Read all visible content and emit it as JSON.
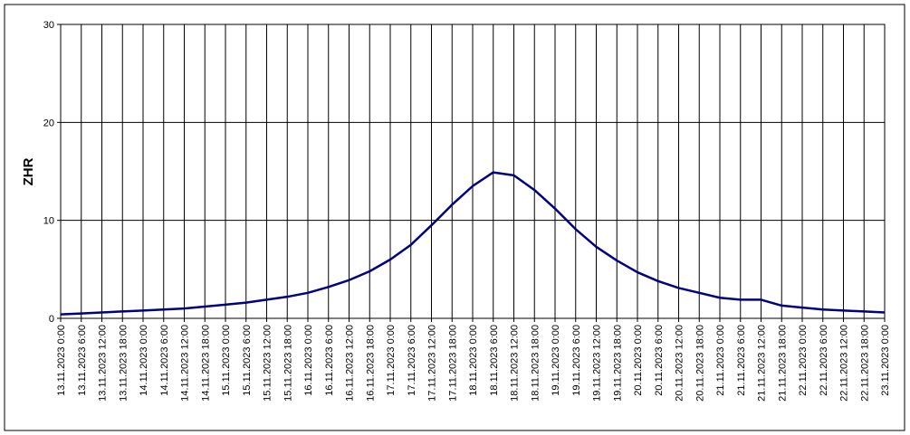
{
  "chart_data": {
    "type": "line",
    "y_label": "ZHR",
    "categories": [
      "13.11.2023 0:00",
      "13.11.2023 6:00",
      "13.11.2023 12:00",
      "13.11.2023 18:00",
      "14.11.2023 0:00",
      "14.11.2023 6:00",
      "14.11.2023 12:00",
      "14.11.2023 18:00",
      "15.11.2023 0:00",
      "15.11.2023 6:00",
      "15.11.2023 12:00",
      "15.11.2023 18:00",
      "16.11.2023 0:00",
      "16.11.2023 6:00",
      "16.11.2023 12:00",
      "16.11.2023 18:00",
      "17.11.2023 0:00",
      "17.11.2023 6:00",
      "17.11.2023 12:00",
      "17.11.2023 18:00",
      "18.11.2023 0:00",
      "18.11.2023 6:00",
      "18.11.2023 12:00",
      "18.11.2023 18:00",
      "19.11.2023 0:00",
      "19.11.2023 6:00",
      "19.11.2023 12:00",
      "19.11.2023 18:00",
      "20.11.2023 0:00",
      "20.11.2023 6:00",
      "20.11.2023 12:00",
      "20.11.2023 18:00",
      "21.11.2023 0:00",
      "21.11.2023 6:00",
      "21.11.2023 12:00",
      "21.11.2023 18:00",
      "22.11.2023 0:00",
      "22.11.2023 6:00",
      "22.11.2023 12:00",
      "22.11.2023 18:00",
      "23.11.2023 0:00"
    ],
    "values": [
      0.4,
      0.5,
      0.6,
      0.7,
      0.8,
      0.9,
      1.0,
      1.2,
      1.4,
      1.6,
      1.9,
      2.2,
      2.6,
      3.2,
      3.9,
      4.8,
      6.0,
      7.5,
      9.5,
      11.6,
      13.5,
      14.9,
      14.6,
      13.1,
      11.2,
      9.1,
      7.3,
      5.9,
      4.7,
      3.8,
      3.1,
      2.6,
      2.1,
      1.9,
      1.9,
      1.3,
      1.1,
      0.9,
      0.8,
      0.7,
      0.6
    ],
    "color": "#000080",
    "ylim": [
      0,
      30
    ],
    "yticks": [
      0,
      10,
      20,
      30
    ],
    "grid": true
  }
}
